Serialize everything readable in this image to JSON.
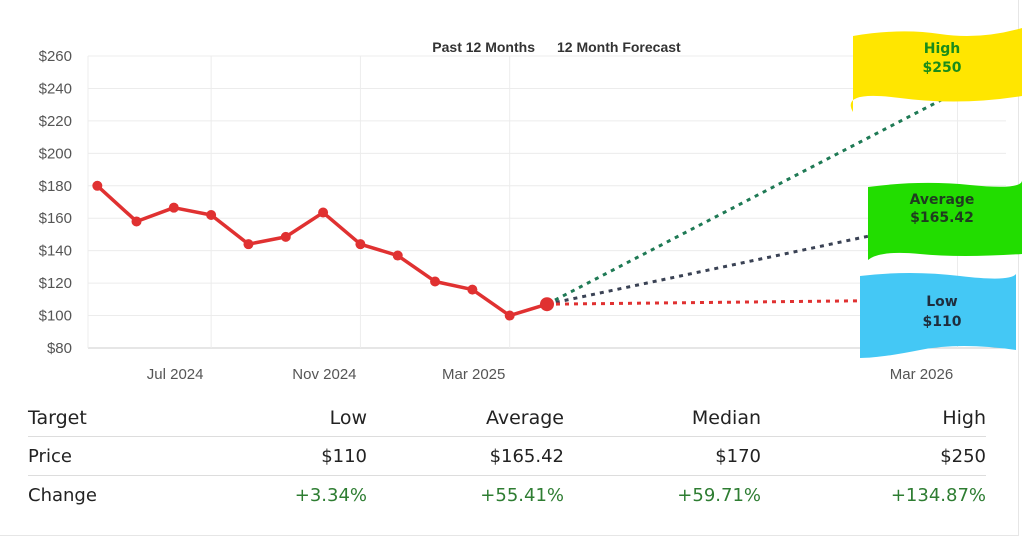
{
  "chart_data": {
    "type": "line",
    "title": "",
    "period_labels": {
      "past": "Past 12 Months",
      "forecast": "12 Month Forecast"
    },
    "ylim": [
      80,
      260
    ],
    "y_ticks": [
      "$80",
      "$100",
      "$120",
      "$140",
      "$160",
      "$180",
      "$200",
      "$220",
      "$240",
      "$260"
    ],
    "y_tick_values": [
      80,
      100,
      120,
      140,
      160,
      180,
      200,
      220,
      240,
      260
    ],
    "x_ticks": [
      {
        "label": "Jul 2024",
        "month": 3
      },
      {
        "label": "Nov 2024",
        "month": 7
      },
      {
        "label": "Mar 2025",
        "month": 11
      },
      {
        "label": "Mar 2026",
        "month": 23
      }
    ],
    "xlim": [
      -0.3,
      24.3
    ],
    "series": [
      {
        "name": "Price (Past 12 Months)",
        "color": "#e03131",
        "months": [
          -0.05,
          1,
          2,
          3,
          4,
          5,
          6,
          7,
          8,
          9,
          10,
          11,
          12
        ],
        "values": [
          180,
          158,
          166.5,
          162,
          144,
          148.5,
          163.5,
          144,
          137,
          121,
          116,
          100,
          107
        ]
      }
    ],
    "forecasts": [
      {
        "name": "High",
        "label": "High",
        "value_label": "$250",
        "start": 107,
        "end": 250,
        "color": "#1f7a55",
        "box_color": "#ffe600",
        "text_color": "#1a8c1a"
      },
      {
        "name": "Average",
        "label": "Average",
        "value_label": "$165.42",
        "start": 107,
        "end": 165.42,
        "color": "#3a4254",
        "box_color": "#22dd00",
        "text_color": "#1f3d1f"
      },
      {
        "name": "Low",
        "label": "Low",
        "value_label": "$110",
        "start": 107,
        "end": 110,
        "color": "#e03131",
        "box_color": "#44c8f5",
        "text_color": "#1f2d3d"
      }
    ]
  },
  "table": {
    "headers": [
      "Target",
      "Low",
      "Average",
      "Median",
      "High"
    ],
    "rows": [
      {
        "label": "Price",
        "low": "$110",
        "average": "$165.42",
        "median": "$170",
        "high": "$250"
      },
      {
        "label": "Change",
        "low": "+3.34%",
        "average": "+55.41%",
        "median": "+59.71%",
        "high": "+134.87%"
      }
    ]
  }
}
